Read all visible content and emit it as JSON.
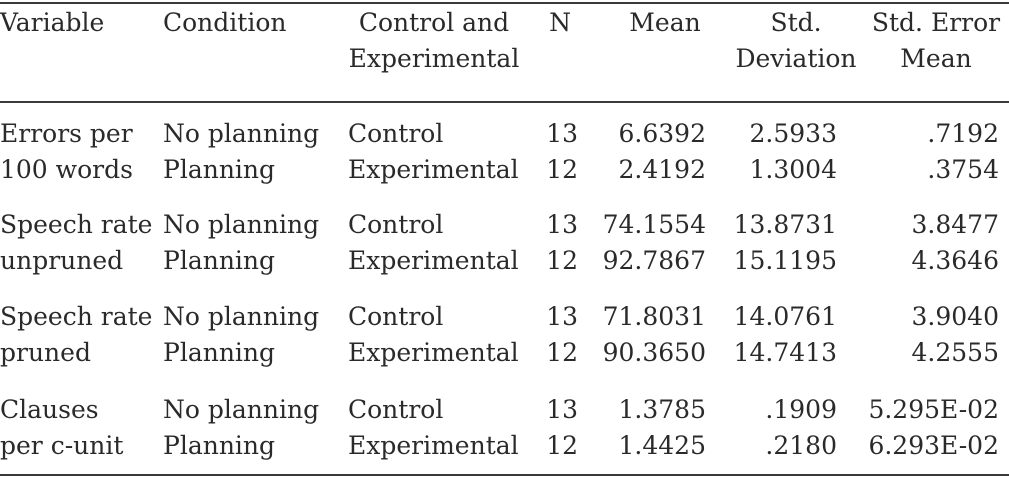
{
  "headers": {
    "variable": "Variable",
    "condition": "Condition",
    "control_line1": "Control and",
    "control_line2": "Experimental",
    "n": "N",
    "mean": "Mean",
    "sd_line1": "Std.",
    "sd_line2": "Deviation",
    "se_line1": "Std. Error",
    "se_line2": "Mean"
  },
  "rows": [
    {
      "variable_line1": "Errors per",
      "variable_line2": "100 words",
      "r1": {
        "condition": "No planning",
        "group": "Control",
        "n": "13",
        "mean": "6.6392",
        "sd": "2.5933",
        "se": ".7192"
      },
      "r2": {
        "condition": "Planning",
        "group": "Experimental",
        "n": "12",
        "mean": "2.4192",
        "sd": "1.3004",
        "se": ".3754"
      }
    },
    {
      "variable_line1": "Speech rate",
      "variable_line2": "unpruned",
      "r1": {
        "condition": "No planning",
        "group": "Control",
        "n": "13",
        "mean": "74.1554",
        "sd": "13.8731",
        "se": "3.8477"
      },
      "r2": {
        "condition": "Planning",
        "group": "Experimental",
        "n": "12",
        "mean": "92.7867",
        "sd": "15.1195",
        "se": "4.3646"
      }
    },
    {
      "variable_line1": "Speech rate",
      "variable_line2": "pruned",
      "r1": {
        "condition": "No planning",
        "group": "Control",
        "n": "13",
        "mean": "71.8031",
        "sd": "14.0761",
        "se": "3.9040"
      },
      "r2": {
        "condition": "Planning",
        "group": "Experimental",
        "n": "12",
        "mean": "90.3650",
        "sd": "14.7413",
        "se": "4.2555"
      }
    },
    {
      "variable_line1": "Clauses",
      "variable_line2": "per c-unit",
      "r1": {
        "condition": "No planning",
        "group": "Control",
        "n": "13",
        "mean": "1.3785",
        "sd": ".1909",
        "se": "5.295E-02"
      },
      "r2": {
        "condition": "Planning",
        "group": "Experimental",
        "n": "12",
        "mean": "1.4425",
        "sd": ".2180",
        "se": "6.293E-02"
      }
    }
  ]
}
